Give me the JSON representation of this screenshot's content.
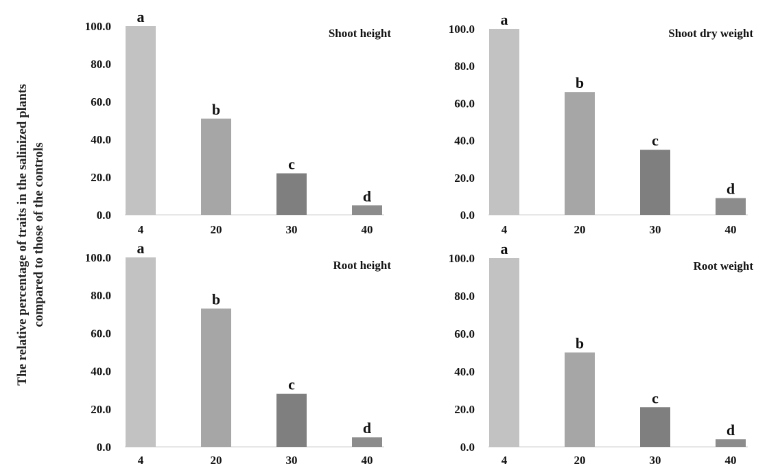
{
  "figure": {
    "y_axis_label_line1": "The relative percentage of traits in the salinized plants",
    "y_axis_label_line2": "compared to those of the controls"
  },
  "chart_data": [
    {
      "type": "bar",
      "title": "Shoot height",
      "categories": [
        "4",
        "20",
        "30",
        "40"
      ],
      "values": [
        100.0,
        51.0,
        22.0,
        5.0
      ],
      "letters": [
        "a",
        "b",
        "c",
        "d"
      ],
      "colors": [
        "#c2c2c2",
        "#a6a6a6",
        "#7f7f7f",
        "#8c8c8c"
      ],
      "ylim": [
        0,
        100
      ],
      "yticks": [
        "0.0",
        "20.0",
        "40.0",
        "60.0",
        "80.0",
        "100.0"
      ],
      "grid": false
    },
    {
      "type": "bar",
      "title": "Shoot dry weight",
      "categories": [
        "4",
        "20",
        "30",
        "40"
      ],
      "values": [
        100.0,
        66.0,
        35.0,
        9.0
      ],
      "letters": [
        "a",
        "b",
        "c",
        "d"
      ],
      "colors": [
        "#c2c2c2",
        "#a6a6a6",
        "#7f7f7f",
        "#8c8c8c"
      ],
      "ylim": [
        0,
        100
      ],
      "yticks": [
        "0.0",
        "20.0",
        "40.0",
        "60.0",
        "80.0",
        "100.0"
      ],
      "grid": false
    },
    {
      "type": "bar",
      "title": "Root height",
      "categories": [
        "4",
        "20",
        "30",
        "40"
      ],
      "values": [
        100.0,
        73.0,
        28.0,
        5.0
      ],
      "letters": [
        "a",
        "b",
        "c",
        "d"
      ],
      "colors": [
        "#c2c2c2",
        "#a6a6a6",
        "#7f7f7f",
        "#8c8c8c"
      ],
      "ylim": [
        0,
        100
      ],
      "yticks": [
        "0.0",
        "20.0",
        "40.0",
        "60.0",
        "80.0",
        "100.0"
      ],
      "grid": false
    },
    {
      "type": "bar",
      "title": "Root weight",
      "categories": [
        "4",
        "20",
        "30",
        "40"
      ],
      "values": [
        100.0,
        50.0,
        21.0,
        4.0
      ],
      "letters": [
        "a",
        "b",
        "c",
        "d"
      ],
      "colors": [
        "#c2c2c2",
        "#a6a6a6",
        "#7f7f7f",
        "#8c8c8c"
      ],
      "ylim": [
        0,
        100
      ],
      "yticks": [
        "0.0",
        "20.0",
        "40.0",
        "60.0",
        "80.0",
        "100.0"
      ],
      "grid": false
    }
  ]
}
